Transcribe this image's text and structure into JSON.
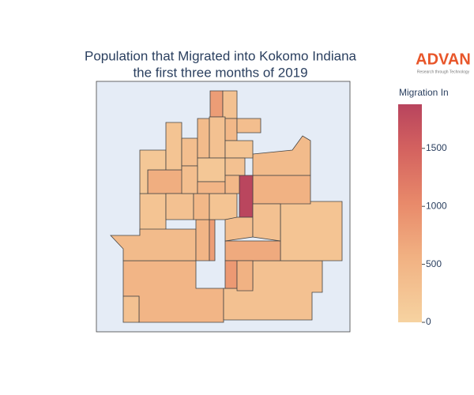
{
  "map": {
    "title": [
      "Population that Migrated into Kokomo Indiana",
      "the first three months of 2019"
    ],
    "logo": {
      "name": "ADVAN",
      "tagline": "Research through Technology"
    },
    "colorbar": {
      "title": "Migration In",
      "range": [
        0,
        1880
      ],
      "ticks": [
        0,
        500,
        1000,
        1500
      ],
      "colorscale": [
        [
          0,
          "#f6d3a1"
        ],
        [
          0.3,
          "#f1b182"
        ],
        [
          0.55,
          "#e8896a"
        ],
        [
          0.8,
          "#d3615f"
        ],
        [
          1,
          "#b8445e"
        ]
      ]
    },
    "regions": [
      800,
      300,
      500,
      300,
      250,
      550,
      400,
      1850,
      250,
      600,
      400,
      500,
      800,
      650,
      850,
      550,
      300,
      450,
      250,
      350,
      300,
      200,
      250,
      350,
      400,
      300,
      450,
      350,
      250,
      200,
      300,
      350,
      500,
      450,
      300
    ]
  }
}
